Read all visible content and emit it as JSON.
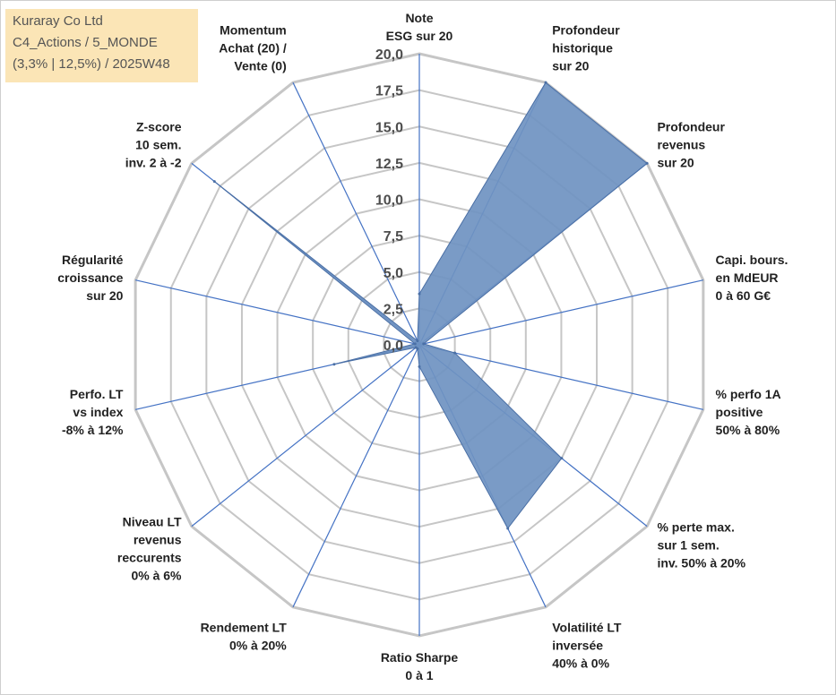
{
  "info": {
    "line1": "Kuraray Co Ltd",
    "line2": "C4_Actions / 5_MONDE",
    "line3": "(3,3% | 12,5%) / 2025W48"
  },
  "chart_data": {
    "type": "radar",
    "rmin": 0,
    "rmax": 20,
    "ticks": [
      "0,0",
      "2,5",
      "5,0",
      "7,5",
      "10,0",
      "12,5",
      "15,0",
      "17,5",
      "20,0"
    ],
    "axes": [
      [
        "Note",
        "ESG sur 20"
      ],
      [
        "Profondeur",
        "historique",
        "sur 20"
      ],
      [
        "Profondeur",
        "revenus",
        "sur 20"
      ],
      [
        "Capi. bours.",
        "en MdEUR",
        "0 à 60 G€"
      ],
      [
        "% perfo 1A",
        "positive",
        "50% à 80%"
      ],
      [
        "% perte max.",
        "sur 1 sem.",
        "inv. 50% à 20%"
      ],
      [
        "Volatilité LT",
        "inversée",
        "40% à 0%"
      ],
      [
        "Ratio Sharpe",
        "0 à 1"
      ],
      [
        "Rendement LT",
        "0% à 20%"
      ],
      [
        "Niveau LT",
        "revenus",
        "reccurents",
        "0% à 6%"
      ],
      [
        "Perfo. LT",
        "vs index",
        "-8% à 12%"
      ],
      [
        "Régularité",
        "croissance",
        "sur 20"
      ],
      [
        "Z-score",
        "10 sem.",
        "inv. 2 à -2"
      ],
      [
        "Momentum",
        "Achat (20) /",
        "Vente (0)"
      ]
    ],
    "values": [
      3.5,
      20,
      20,
      0.3,
      2.5,
      12.5,
      14,
      1.5,
      0.3,
      0.3,
      6,
      0.3,
      18,
      0.3
    ],
    "grid": true,
    "fill_color": "#6f93c1",
    "stroke_color": "#4a6fa5",
    "grid_color": "#c6c6c6",
    "spoke_color": "#4472c4"
  }
}
